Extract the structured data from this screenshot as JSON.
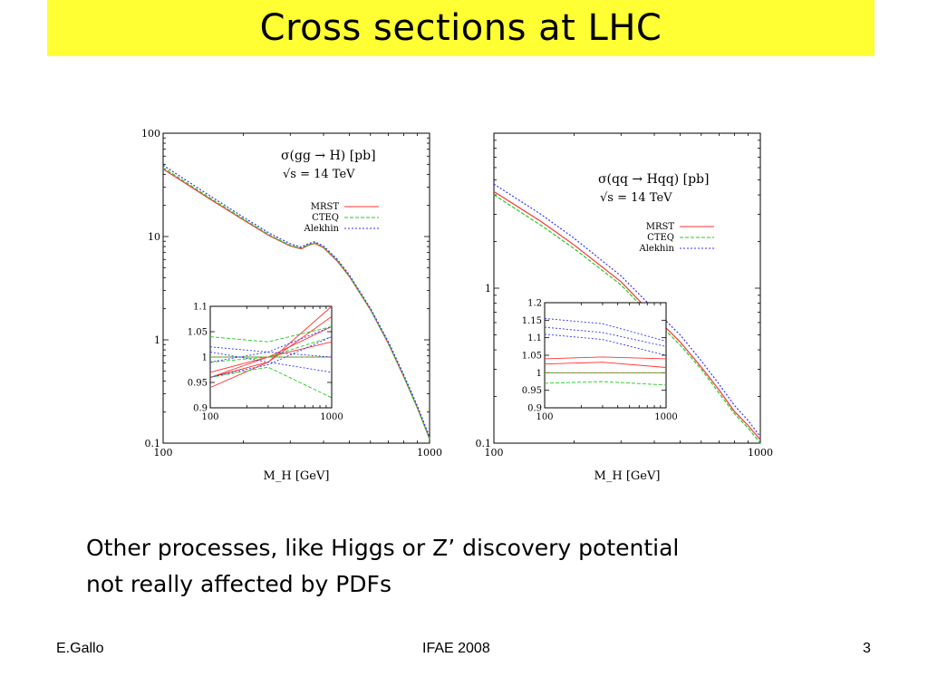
{
  "slide": {
    "title": "Cross sections at LHC",
    "body_line1": "Other processes, like Higgs or Z’ discovery potential",
    "body_line2": "not really affected by PDFs",
    "footer_left": "E.Gallo",
    "footer_center": "IFAE 2008",
    "footer_right": "3"
  },
  "colors": {
    "title_bar": "#ffff33",
    "MRST": "#ff3333",
    "CTEQ": "#22cc22",
    "Alekhin": "#3333ff"
  },
  "chart_data": [
    {
      "id": "left",
      "type": "line",
      "title_lines": [
        "σ(gg → H) [pb]",
        "√s = 14 TeV"
      ],
      "xlabel": "M_H [GeV]",
      "ylabel": "",
      "xscale": "log",
      "yscale": "log",
      "xlim": [
        100,
        1000
      ],
      "ylim": [
        0.1,
        100
      ],
      "xticks": [
        "100",
        "1000"
      ],
      "yticks": [
        "0.1",
        "1",
        "10",
        "100"
      ],
      "legend_position": "top-right",
      "series": [
        {
          "name": "MRST",
          "style": "solid",
          "x": [
            100,
            150,
            200,
            250,
            300,
            330,
            350,
            370,
            400,
            450,
            500,
            600,
            700,
            800,
            900,
            1000
          ],
          "y": [
            45,
            23,
            14.5,
            10.2,
            8.1,
            7.6,
            8.2,
            8.6,
            7.8,
            5.8,
            4.1,
            1.95,
            0.92,
            0.44,
            0.22,
            0.11
          ]
        },
        {
          "name": "CTEQ",
          "style": "dashed",
          "x": [
            100,
            150,
            200,
            250,
            300,
            330,
            350,
            370,
            400,
            450,
            500,
            600,
            700,
            800,
            900,
            1000
          ],
          "y": [
            46.5,
            23.6,
            14.8,
            10.4,
            8.2,
            7.7,
            8.3,
            8.7,
            7.9,
            5.9,
            4.15,
            1.97,
            0.93,
            0.44,
            0.22,
            0.11
          ]
        },
        {
          "name": "Alekhin",
          "style": "dotted",
          "x": [
            100,
            150,
            200,
            250,
            300,
            330,
            350,
            370,
            400,
            450,
            500,
            600,
            700,
            800,
            900,
            1000
          ],
          "y": [
            49,
            24.7,
            15.4,
            10.8,
            8.5,
            7.9,
            8.5,
            8.9,
            8.1,
            6.05,
            4.25,
            2.02,
            0.96,
            0.46,
            0.23,
            0.115
          ]
        }
      ],
      "inset": {
        "xscale": "log",
        "xlim": [
          100,
          1000
        ],
        "ylim": [
          0.9,
          1.1
        ],
        "xticks": [
          "100",
          "1000"
        ],
        "yticks": [
          "0.9",
          "0.95",
          "1",
          "1.05",
          "1.1"
        ],
        "series": [
          {
            "name": "MRST",
            "style": "solid",
            "x": [
              100,
              1000
            ],
            "y": [
              1.0,
              1.0
            ]
          },
          {
            "name": "MRST",
            "style": "solid",
            "x": [
              100,
              300,
              1000
            ],
            "y": [
              0.96,
              0.99,
              1.1
            ]
          },
          {
            "name": "MRST",
            "style": "solid",
            "x": [
              100,
              300,
              1000
            ],
            "y": [
              0.94,
              0.99,
              1.08
            ]
          },
          {
            "name": "MRST",
            "style": "solid",
            "x": [
              100,
              300,
              1000
            ],
            "y": [
              0.97,
              1.0,
              1.06
            ]
          },
          {
            "name": "MRST",
            "style": "solid",
            "x": [
              100,
              300,
              1000
            ],
            "y": [
              0.96,
              1.0,
              1.03
            ]
          },
          {
            "name": "CTEQ",
            "style": "dashed",
            "x": [
              100,
              1000
            ],
            "y": [
              1.0,
              1.0
            ]
          },
          {
            "name": "CTEQ",
            "style": "dashed",
            "x": [
              100,
              300,
              1000
            ],
            "y": [
              1.04,
              1.03,
              1.06
            ]
          },
          {
            "name": "CTEQ",
            "style": "dashed",
            "x": [
              100,
              300,
              1000
            ],
            "y": [
              0.96,
              0.98,
              0.92
            ]
          },
          {
            "name": "CTEQ",
            "style": "dashed",
            "x": [
              100,
              300,
              1000
            ],
            "y": [
              0.99,
              1.0,
              1.04
            ]
          },
          {
            "name": "Alekhin",
            "style": "dotted",
            "x": [
              100,
              300,
              1000
            ],
            "y": [
              1.02,
              1.01,
              1.0
            ]
          },
          {
            "name": "Alekhin",
            "style": "dotted",
            "x": [
              100,
              300,
              1000
            ],
            "y": [
              1.01,
              0.99,
              0.97
            ]
          },
          {
            "name": "Alekhin",
            "style": "dotted",
            "x": [
              100,
              300,
              1000
            ],
            "y": [
              0.96,
              0.985,
              1.04
            ]
          },
          {
            "name": "Alekhin",
            "style": "dotted",
            "x": [
              100,
              300,
              1000
            ],
            "y": [
              0.99,
              1.01,
              1.06
            ]
          }
        ]
      }
    },
    {
      "id": "right",
      "type": "line",
      "title_lines": [
        "σ(qq → Hqq) [pb]",
        "√s = 14 TeV"
      ],
      "xlabel": "M_H [GeV]",
      "ylabel": "",
      "xscale": "log",
      "yscale": "log",
      "xlim": [
        100,
        1000
      ],
      "ylim": [
        0.1,
        10
      ],
      "xticks": [
        "100",
        "1000"
      ],
      "yticks": [
        "0.1",
        "1"
      ],
      "legend_position": "top-right",
      "series": [
        {
          "name": "MRST",
          "style": "solid",
          "x": [
            100,
            150,
            200,
            300,
            400,
            500,
            600,
            700,
            800,
            900,
            1000
          ],
          "y": [
            4.2,
            2.7,
            1.9,
            1.1,
            0.66,
            0.45,
            0.31,
            0.22,
            0.16,
            0.13,
            0.105
          ]
        },
        {
          "name": "CTEQ",
          "style": "dashed",
          "x": [
            100,
            150,
            200,
            300,
            400,
            500,
            600,
            700,
            800,
            900,
            1000
          ],
          "y": [
            4.0,
            2.55,
            1.8,
            1.05,
            0.63,
            0.43,
            0.3,
            0.21,
            0.155,
            0.125,
            0.1
          ]
        },
        {
          "name": "Alekhin",
          "style": "dotted",
          "x": [
            100,
            150,
            200,
            300,
            400,
            500,
            600,
            700,
            800,
            900,
            1000
          ],
          "y": [
            4.7,
            3.0,
            2.1,
            1.2,
            0.73,
            0.5,
            0.34,
            0.24,
            0.175,
            0.14,
            0.11
          ]
        }
      ],
      "inset": {
        "xscale": "log",
        "xlim": [
          100,
          1000
        ],
        "ylim": [
          0.9,
          1.2
        ],
        "xticks": [
          "100",
          "1000"
        ],
        "yticks": [
          "0.9",
          "0.95",
          "1",
          "1.05",
          "1.1",
          "1.15",
          "1.2"
        ],
        "series": [
          {
            "name": "MRST",
            "style": "solid",
            "x": [
              100,
              1000
            ],
            "y": [
              1.0,
              1.0
            ]
          },
          {
            "name": "MRST",
            "style": "solid",
            "x": [
              100,
              300,
              1000
            ],
            "y": [
              1.04,
              1.045,
              1.04
            ]
          },
          {
            "name": "MRST",
            "style": "solid",
            "x": [
              100,
              300,
              1000
            ],
            "y": [
              1.025,
              1.03,
              1.015
            ]
          },
          {
            "name": "CTEQ",
            "style": "dashed",
            "x": [
              100,
              1000
            ],
            "y": [
              1.0,
              1.0
            ]
          },
          {
            "name": "CTEQ",
            "style": "dashed",
            "x": [
              100,
              300,
              1000
            ],
            "y": [
              0.97,
              0.975,
              0.965
            ]
          },
          {
            "name": "Alekhin",
            "style": "dotted",
            "x": [
              100,
              300,
              1000
            ],
            "y": [
              1.155,
              1.14,
              1.09
            ]
          },
          {
            "name": "Alekhin",
            "style": "dotted",
            "x": [
              100,
              300,
              1000
            ],
            "y": [
              1.13,
              1.115,
              1.075
            ]
          },
          {
            "name": "Alekhin",
            "style": "dotted",
            "x": [
              100,
              300,
              1000
            ],
            "y": [
              1.11,
              1.095,
              1.05
            ]
          }
        ]
      }
    }
  ]
}
